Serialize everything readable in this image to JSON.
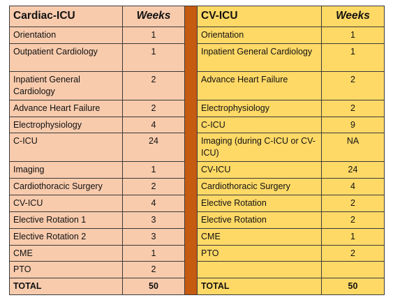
{
  "left_table": {
    "header": {
      "title": "Cardiac-ICU",
      "weeks": "Weeks"
    },
    "rows": [
      {
        "name": "Orientation",
        "weeks": "1"
      },
      {
        "name": "Outpatient Cardiology",
        "weeks": "1"
      },
      {
        "name": "Inpatient General Cardiology",
        "weeks": "2"
      },
      {
        "name": "Advance Heart Failure",
        "weeks": "2"
      },
      {
        "name": "Electrophysiology",
        "weeks": "4"
      },
      {
        "name": "C-ICU",
        "weeks": "24"
      },
      {
        "name": "Imaging",
        "weeks": "1"
      },
      {
        "name": "Cardiothoracic Surgery",
        "weeks": "2"
      },
      {
        "name": "CV-ICU",
        "weeks": "4"
      },
      {
        "name": "Elective Rotation 1",
        "weeks": "3"
      },
      {
        "name": "Elective Rotation 2",
        "weeks": "3"
      },
      {
        "name": "CME",
        "weeks": "1"
      },
      {
        "name": "PTO",
        "weeks": "2"
      }
    ],
    "total": {
      "label": "TOTAL",
      "weeks": "50"
    }
  },
  "right_table": {
    "header": {
      "title": "CV-ICU",
      "weeks": "Weeks"
    },
    "rows": [
      {
        "name": "Orientation",
        "weeks": "1"
      },
      {
        "name": "Inpatient General Cardiology",
        "weeks": "1"
      },
      {
        "name": "Advance Heart Failure",
        "weeks": "2"
      },
      {
        "name": "Electrophysiology",
        "weeks": "2"
      },
      {
        "name": "C-ICU",
        "weeks": "9"
      },
      {
        "name": "Imaging (during C-ICU or CV-ICU)",
        "weeks": "NA"
      },
      {
        "name": "CV-ICU",
        "weeks": "24"
      },
      {
        "name": "Cardiothoracic Surgery",
        "weeks": "4"
      },
      {
        "name": "Elective Rotation",
        "weeks": "2"
      },
      {
        "name": "Elective Rotation",
        "weeks": "2"
      },
      {
        "name": "CME",
        "weeks": "1"
      },
      {
        "name": "PTO",
        "weeks": "2"
      },
      {
        "name": "",
        "weeks": ""
      }
    ],
    "total": {
      "label": "TOTAL",
      "weeks": "50"
    }
  },
  "colors": {
    "left_fill": "#f8cbad",
    "right_fill": "#ffd966",
    "separator": "#c55a11"
  }
}
